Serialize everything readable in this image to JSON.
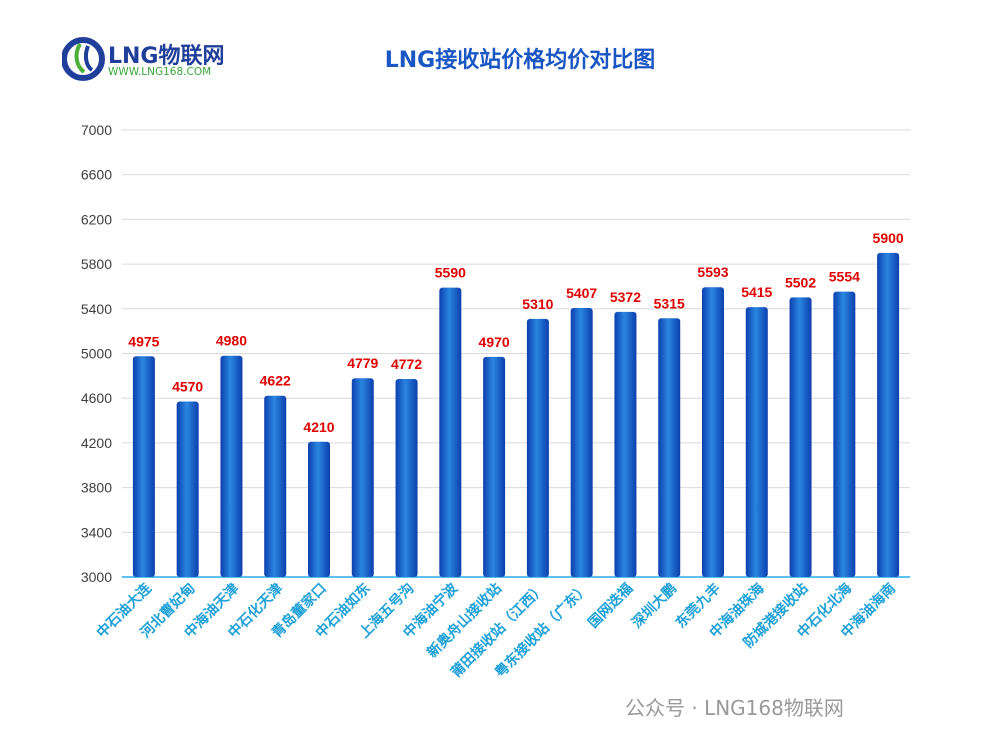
{
  "logo": {
    "brand": "LNG物联网",
    "url": "WWW.LNG168.COM"
  },
  "watermark": "公众号 · LNG168物联网",
  "chart_data": {
    "type": "bar",
    "title": "LNG接收站价格均价对比图",
    "categories": [
      "中石油大连",
      "河北曹妃甸",
      "中海油天津",
      "中石化天津",
      "青岛董家口",
      "中石油如东",
      "上海五号沟",
      "中海油宁波",
      "新奥舟山接收站",
      "莆田接收站（江西）",
      "粤东接收站（广东）",
      "国网迭福",
      "深圳大鹏",
      "东莞九丰",
      "中海油珠海",
      "防城港接收站",
      "中石化北海",
      "中海油海南"
    ],
    "values": [
      4975,
      4570,
      4980,
      4622,
      4210,
      4779,
      4772,
      5590,
      4970,
      5310,
      5407,
      5372,
      5315,
      5593,
      5415,
      5502,
      5554,
      5900
    ],
    "ylim": [
      3000,
      7000
    ],
    "yticks": [
      3000,
      3400,
      3800,
      4200,
      4600,
      5000,
      5400,
      5800,
      6200,
      6600,
      7000
    ],
    "grid": true,
    "colors": {
      "bar": "#1a6fd0",
      "bar_dark": "#0d3fae",
      "label": "#e00000",
      "category": "#1ea0d8",
      "title": "#1a56c4"
    }
  }
}
